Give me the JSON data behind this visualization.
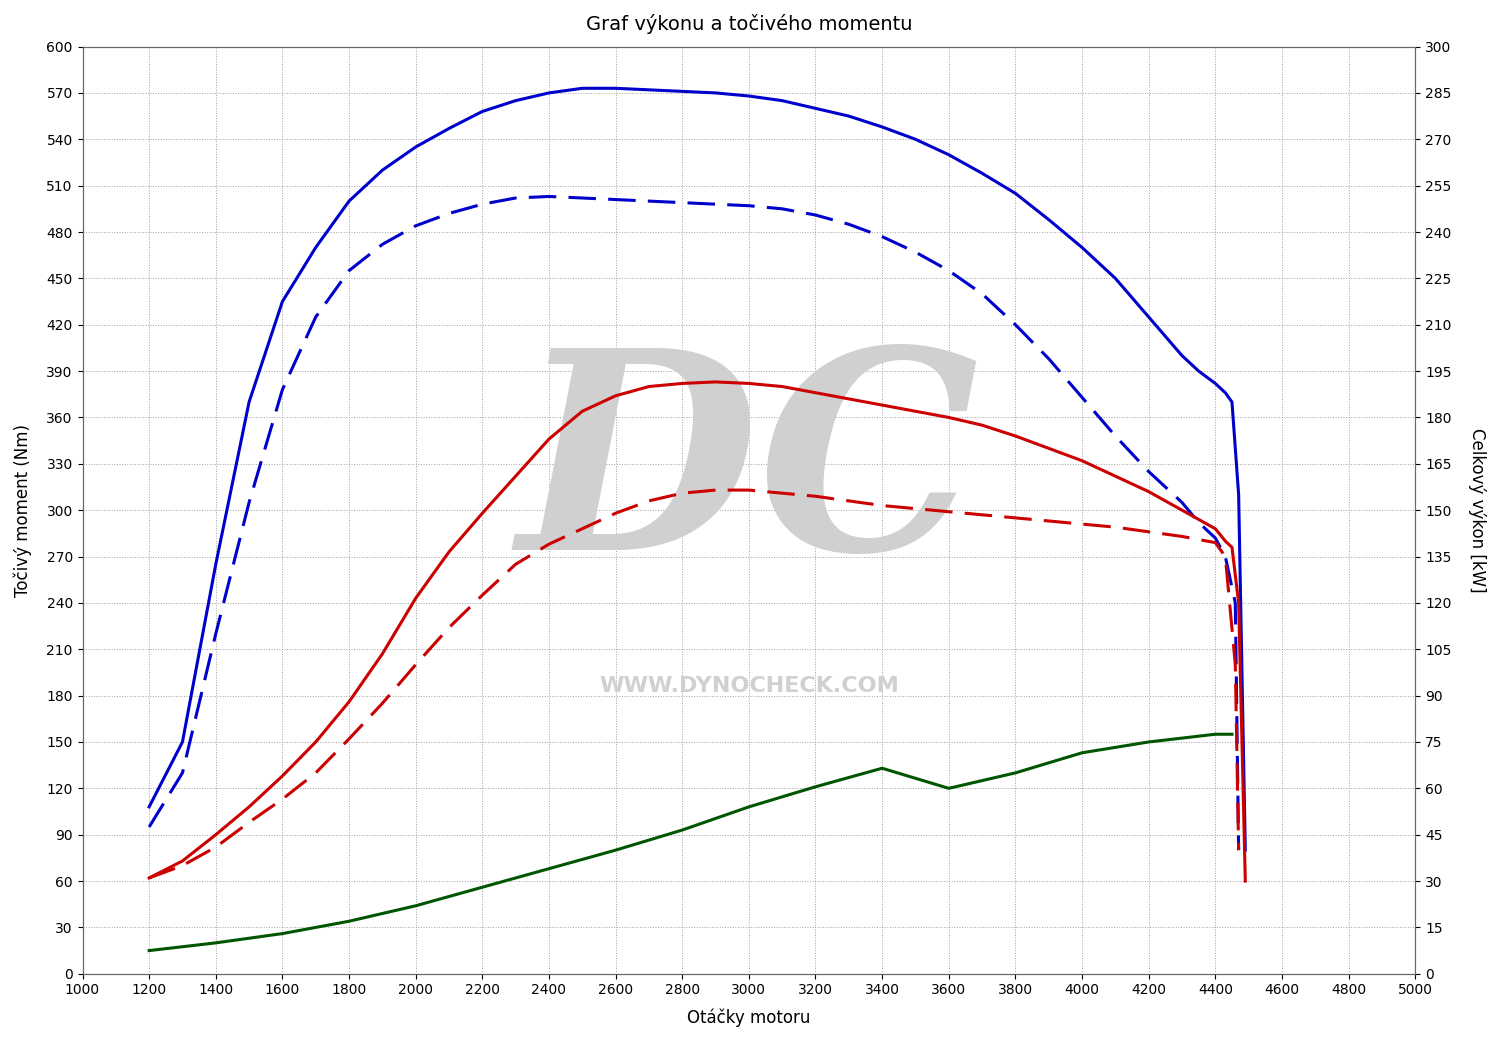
{
  "title": "Graf výkonu a točivého momentu",
  "xlabel": "Otáčky motoru",
  "ylabel_left": "Točivý moment (Nm)",
  "ylabel_right": "Celkový výkon [kW]",
  "xlim": [
    1000,
    5000
  ],
  "ylim_left": [
    0,
    600
  ],
  "ylim_right": [
    0,
    300
  ],
  "background_color": "#ffffff",
  "grid_color": "#888888",
  "blue_solid_rpm": [
    1200,
    1300,
    1400,
    1500,
    1600,
    1700,
    1800,
    1900,
    2000,
    2100,
    2200,
    2300,
    2400,
    2500,
    2600,
    2700,
    2800,
    2900,
    3000,
    3100,
    3200,
    3300,
    3400,
    3500,
    3600,
    3700,
    3800,
    3900,
    4000,
    4100,
    4200,
    4300,
    4350,
    4400,
    4430,
    4450,
    4470,
    4490
  ],
  "blue_solid_nm": [
    108,
    150,
    265,
    370,
    435,
    470,
    500,
    520,
    535,
    547,
    558,
    565,
    570,
    573,
    573,
    572,
    571,
    570,
    568,
    565,
    560,
    555,
    548,
    540,
    530,
    518,
    505,
    488,
    470,
    450,
    425,
    400,
    390,
    382,
    376,
    370,
    310,
    80
  ],
  "blue_dashed_rpm": [
    1200,
    1300,
    1400,
    1500,
    1600,
    1700,
    1800,
    1900,
    2000,
    2100,
    2200,
    2300,
    2400,
    2500,
    2600,
    2700,
    2800,
    2900,
    3000,
    3100,
    3200,
    3300,
    3400,
    3500,
    3600,
    3700,
    3800,
    3900,
    4000,
    4100,
    4200,
    4300,
    4350,
    4400,
    4430,
    4460,
    4470
  ],
  "blue_dashed_nm": [
    95,
    130,
    220,
    305,
    378,
    425,
    455,
    472,
    484,
    492,
    498,
    502,
    503,
    502,
    501,
    500,
    499,
    498,
    497,
    495,
    491,
    485,
    477,
    467,
    455,
    440,
    420,
    398,
    373,
    348,
    325,
    305,
    292,
    282,
    270,
    240,
    80
  ],
  "red_solid_rpm": [
    1200,
    1300,
    1400,
    1500,
    1600,
    1700,
    1800,
    1900,
    2000,
    2100,
    2200,
    2300,
    2400,
    2500,
    2600,
    2700,
    2800,
    2900,
    3000,
    3100,
    3200,
    3300,
    3400,
    3500,
    3600,
    3700,
    3800,
    3900,
    4000,
    4100,
    4200,
    4300,
    4400,
    4430,
    4450,
    4470,
    4490
  ],
  "red_solid_nm": [
    62,
    73,
    90,
    108,
    128,
    150,
    176,
    207,
    243,
    273,
    298,
    322,
    346,
    364,
    374,
    380,
    382,
    383,
    382,
    380,
    376,
    372,
    368,
    364,
    360,
    355,
    348,
    340,
    332,
    322,
    312,
    300,
    288,
    280,
    276,
    240,
    60
  ],
  "red_dashed_rpm": [
    1200,
    1300,
    1400,
    1500,
    1600,
    1700,
    1800,
    1900,
    2000,
    2100,
    2200,
    2300,
    2400,
    2500,
    2600,
    2700,
    2800,
    2900,
    3000,
    3100,
    3200,
    3300,
    3400,
    3500,
    3600,
    3700,
    3800,
    3900,
    4000,
    4100,
    4200,
    4300,
    4400,
    4430,
    4460,
    4470
  ],
  "red_dashed_nm": [
    62,
    70,
    82,
    98,
    113,
    130,
    152,
    175,
    200,
    224,
    245,
    265,
    278,
    288,
    298,
    306,
    311,
    313,
    313,
    311,
    309,
    306,
    303,
    301,
    299,
    297,
    295,
    293,
    291,
    289,
    286,
    283,
    279,
    270,
    200,
    80
  ],
  "green_rpm": [
    1200,
    1400,
    1600,
    1800,
    2000,
    2200,
    2400,
    2600,
    2800,
    3000,
    3200,
    3400,
    3600,
    3800,
    4000,
    4200,
    4400,
    4450
  ],
  "green_nm": [
    15,
    20,
    26,
    34,
    44,
    56,
    68,
    80,
    93,
    108,
    121,
    133,
    120,
    130,
    143,
    150,
    155,
    155
  ],
  "blue_solid_color": "#0000cc",
  "blue_dashed_color": "#0000cc",
  "red_solid_color": "#cc0000",
  "red_dashed_color": "#cc0000",
  "green_color": "#005500",
  "line_width": 2.2,
  "watermark_color": "#d0d0d0",
  "watermark_text1": "DC",
  "watermark_text2": "WWW.DYNOCHECK.COM"
}
